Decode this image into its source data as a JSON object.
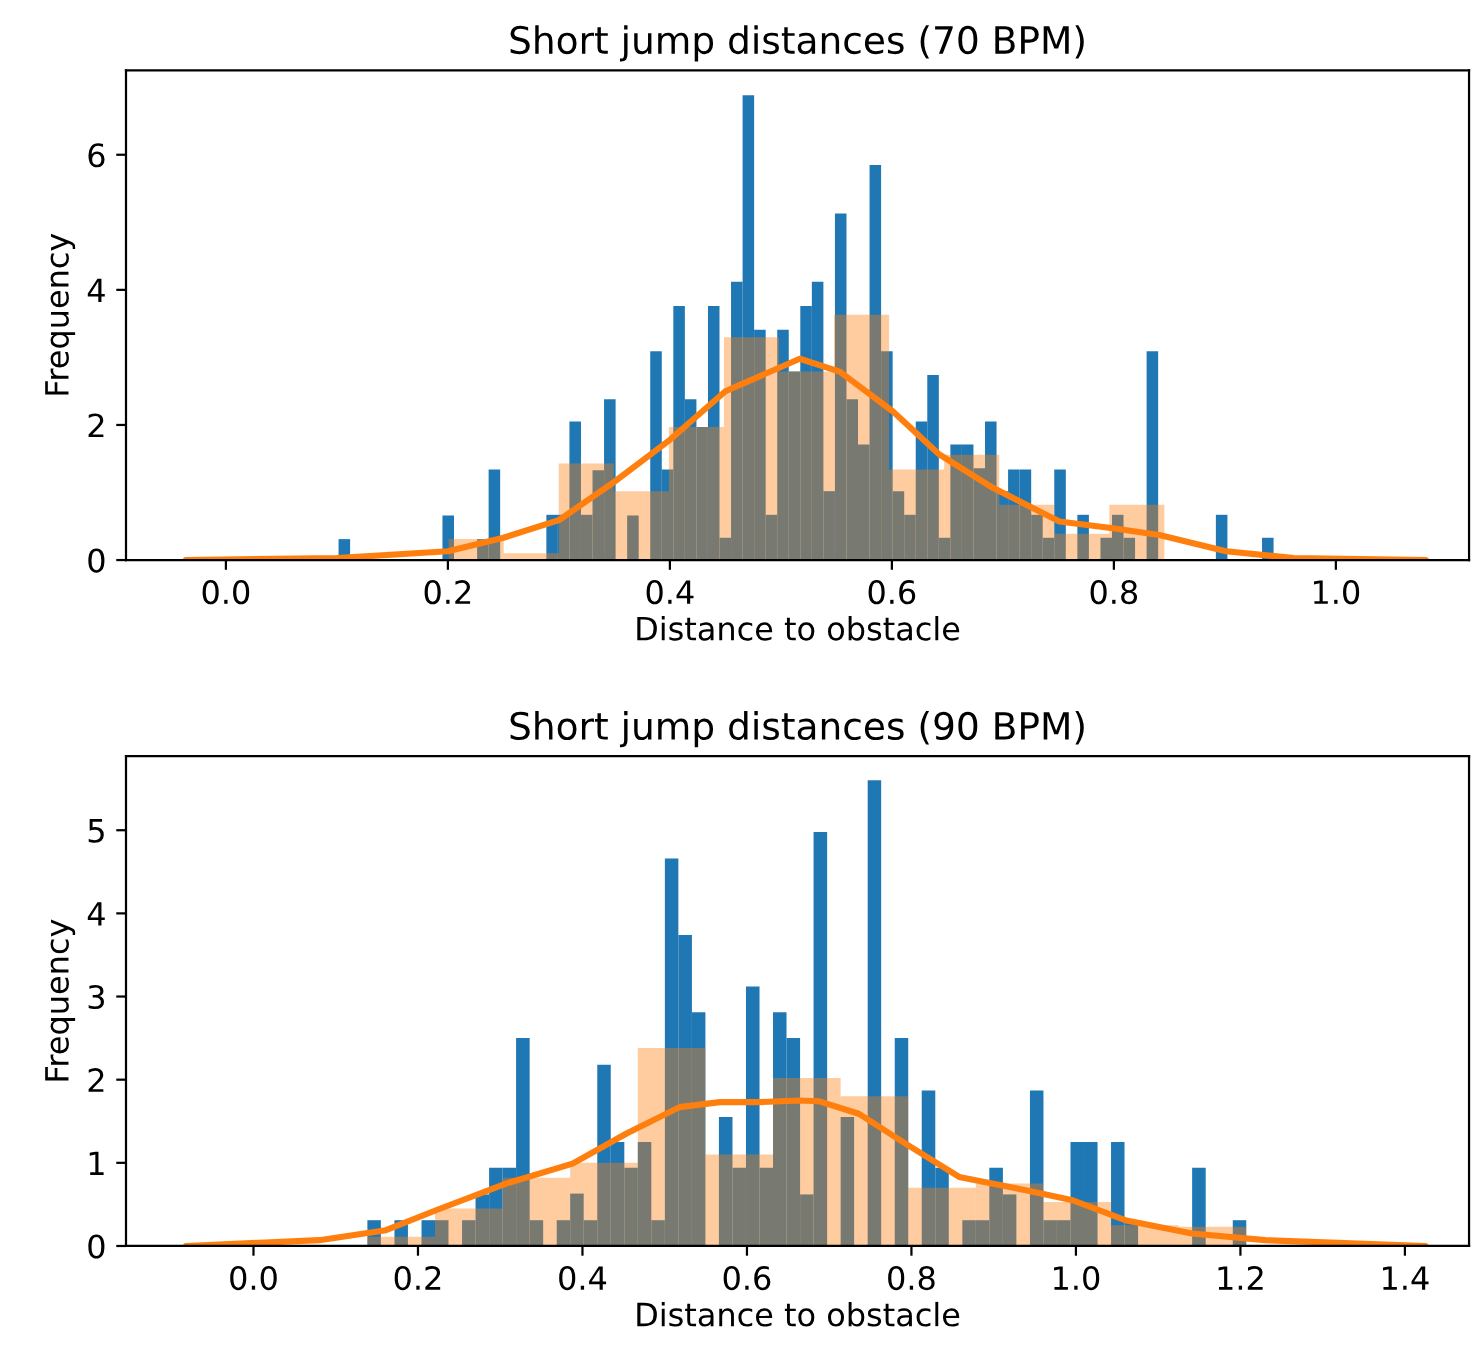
{
  "chart_data": [
    {
      "type": "histogram",
      "title": "Short jump distances (70 BPM)",
      "xlabel": "Distance to obstacle",
      "ylabel": "Frequency",
      "xlim": [
        -0.09,
        1.12
      ],
      "ylim": [
        0,
        7.25
      ],
      "xticks": [
        {
          "value": 0,
          "label": "0.0"
        },
        {
          "value": 0.2,
          "label": "0.2"
        },
        {
          "value": 0.4,
          "label": "0.4"
        },
        {
          "value": 0.6,
          "label": "0.6"
        },
        {
          "value": 0.8,
          "label": "0.8"
        },
        {
          "value": 1.0,
          "label": "1.0"
        }
      ],
      "yticks": [
        0,
        2,
        4,
        6
      ],
      "grid": false,
      "legend": false,
      "series": [
        {
          "type": "histogram",
          "color": "#1f77b4",
          "bins": [
            0.1015,
            0.1119,
            0.1223,
            0.1327,
            0.1431,
            0.1535,
            0.1639,
            0.1743,
            0.1847,
            0.1951,
            0.2055,
            0.2159,
            0.2263,
            0.2367,
            0.2471,
            0.2575,
            0.2679,
            0.2783,
            0.2887,
            0.2991,
            0.3095,
            0.3199,
            0.3303,
            0.3407,
            0.3511,
            0.3615,
            0.3719,
            0.3823,
            0.3927,
            0.4031,
            0.4135,
            0.4239,
            0.4343,
            0.4447,
            0.4551,
            0.4655,
            0.4759,
            0.4863,
            0.4967,
            0.5071,
            0.5175,
            0.5279,
            0.5383,
            0.5487,
            0.5591,
            0.5695,
            0.5799,
            0.5903,
            0.6007,
            0.6111,
            0.6215,
            0.6319,
            0.6423,
            0.6527,
            0.6631,
            0.6735,
            0.6839,
            0.6943,
            0.7047,
            0.7151,
            0.7255,
            0.7359,
            0.7463,
            0.7567,
            0.7671,
            0.7775,
            0.7879,
            0.7983,
            0.8087,
            0.8191,
            0.8295,
            0.8399,
            0.8503,
            0.8607,
            0.8711,
            0.8815,
            0.8919,
            0.9023,
            0.9127,
            0.9231,
            0.9335,
            0.9439
          ],
          "values": [
            0.31,
            0,
            0,
            0,
            0,
            0,
            0,
            0,
            0,
            0.66,
            0,
            0,
            0.31,
            1.34,
            0,
            0,
            0,
            0,
            0.67,
            0.67,
            2.05,
            0.67,
            1.33,
            2.38,
            0,
            0.66,
            0,
            3.09,
            1.34,
            3.76,
            2.38,
            1.97,
            3.76,
            0.33,
            4.12,
            6.88,
            3.41,
            0.67,
            3.41,
            2.79,
            3.76,
            4.12,
            1.02,
            5.13,
            2.38,
            1.71,
            5.85,
            3.09,
            1.02,
            0.67,
            2.05,
            2.74,
            0.33,
            1.71,
            1.71,
            1.36,
            2.05,
            1.02,
            1.34,
            1.34,
            0.67,
            0.33,
            1.34,
            0,
            0.67,
            0,
            0.33,
            0.67,
            0.33,
            0,
            3.09,
            0,
            0,
            0,
            0,
            0,
            0.67,
            0,
            0,
            0,
            0.33
          ]
        },
        {
          "type": "histogram",
          "color": "#ff7f0e",
          "bins": [
            0.1015,
            0.1511,
            0.2007,
            0.2503,
            0.2999,
            0.3495,
            0.3991,
            0.4487,
            0.4983,
            0.5479,
            0.5975,
            0.6471,
            0.6967,
            0.7463,
            0.7959,
            0.8455,
            0.8951,
            0.9447
          ],
          "values": [
            null,
            null,
            0.31,
            0.1,
            1.43,
            1.02,
            1.97,
            3.3,
            2.79,
            3.63,
            1.34,
            1.56,
            0.82,
            0.39,
            0.82,
            0,
            null
          ]
        },
        {
          "type": "line",
          "color": "#ff7f0e",
          "x": [
            -0.036,
            0.1,
            0.2,
            0.25,
            0.3,
            0.35,
            0.4,
            0.45,
            0.517,
            0.553,
            0.601,
            0.643,
            0.691,
            0.751,
            0.799,
            0.841,
            0.901,
            0.962,
            1.081
          ],
          "values": [
            0,
            0.03,
            0.13,
            0.33,
            0.59,
            1.16,
            1.78,
            2.5,
            2.98,
            2.79,
            2.2,
            1.56,
            1.07,
            0.57,
            0.47,
            0.37,
            0.13,
            0.03,
            0
          ]
        }
      ]
    },
    {
      "type": "histogram",
      "title": "Short jump distances (90 BPM)",
      "xlabel": "Distance to obstacle",
      "ylabel": "Frequency",
      "xlim": [
        -0.155,
        1.478
      ],
      "ylim": [
        0,
        5.89
      ],
      "xticks": [
        {
          "value": 0,
          "label": "0.0"
        },
        {
          "value": 0.2,
          "label": "0.2"
        },
        {
          "value": 0.4,
          "label": "0.4"
        },
        {
          "value": 0.6,
          "label": "0.6"
        },
        {
          "value": 0.8,
          "label": "0.8"
        },
        {
          "value": 1.0,
          "label": "1.0"
        },
        {
          "value": 1.2,
          "label": "1.2"
        },
        {
          "value": 1.4,
          "label": "1.4"
        }
      ],
      "yticks": [
        0,
        1,
        2,
        3,
        4,
        5
      ],
      "grid": false,
      "legend": false,
      "series": [
        {
          "type": "histogram",
          "color": "#1f77b4",
          "bins": [
            0.1385,
            0.1549,
            0.1714,
            0.1878,
            0.2043,
            0.2207,
            0.2371,
            0.2536,
            0.27,
            0.2865,
            0.3029,
            0.3193,
            0.3358,
            0.3522,
            0.3687,
            0.3851,
            0.4015,
            0.418,
            0.4344,
            0.4509,
            0.4673,
            0.4837,
            0.5002,
            0.5166,
            0.5331,
            0.5495,
            0.5659,
            0.5824,
            0.5988,
            0.6153,
            0.6317,
            0.6481,
            0.6646,
            0.681,
            0.6975,
            0.7139,
            0.7303,
            0.7468,
            0.7632,
            0.7797,
            0.7961,
            0.8125,
            0.829,
            0.8454,
            0.8619,
            0.8783,
            0.8947,
            0.9112,
            0.9276,
            0.9441,
            0.9605,
            0.9769,
            0.9934,
            1.0098,
            1.0263,
            1.0427,
            1.0591,
            1.0756,
            1.092,
            1.1085,
            1.1249,
            1.1413,
            1.1578,
            1.1742,
            1.1907,
            1.2071
          ],
          "values": [
            0.31,
            0,
            0.31,
            0,
            0.31,
            0.31,
            0,
            0.31,
            0.62,
            0.94,
            0.94,
            2.5,
            0.31,
            0,
            0.31,
            0.63,
            0.31,
            2.18,
            1.25,
            0.94,
            1.25,
            0.31,
            4.66,
            3.74,
            2.81,
            0,
            1.55,
            0.94,
            3.12,
            0.94,
            2.81,
            2.5,
            0.62,
            4.98,
            0,
            1.55,
            0,
            5.6,
            0,
            2.5,
            0,
            1.87,
            0.94,
            0,
            0.31,
            0.31,
            0.94,
            0.62,
            0,
            1.87,
            0.31,
            0.31,
            1.25,
            1.25,
            0,
            1.25,
            0.31,
            0,
            0,
            0,
            0,
            0.94,
            0,
            0,
            0.31
          ]
        },
        {
          "type": "histogram",
          "color": "#ff7f0e",
          "bins": [
            0.1385,
            0.2207,
            0.3029,
            0.3851,
            0.4673,
            0.5495,
            0.6317,
            0.7139,
            0.7961,
            0.8783,
            0.9605,
            1.0427,
            1.1249,
            1.2071
          ],
          "values": [
            0.11,
            0.45,
            0.82,
            1.0,
            2.38,
            1.1,
            2.02,
            1.8,
            0.7,
            0.75,
            0.53,
            0.25,
            0.23
          ]
        },
        {
          "type": "line",
          "color": "#ff7f0e",
          "x": [
            -0.082,
            0.08,
            0.161,
            0.222,
            0.307,
            0.388,
            0.453,
            0.518,
            0.567,
            0.615,
            0.664,
            0.688,
            0.736,
            0.793,
            0.858,
            0.939,
            0.996,
            1.06,
            1.141,
            1.23,
            1.425
          ],
          "values": [
            0,
            0.07,
            0.19,
            0.43,
            0.75,
            0.99,
            1.35,
            1.67,
            1.73,
            1.73,
            1.75,
            1.74,
            1.59,
            1.23,
            0.83,
            0.67,
            0.55,
            0.31,
            0.15,
            0.07,
            0
          ]
        }
      ]
    }
  ]
}
